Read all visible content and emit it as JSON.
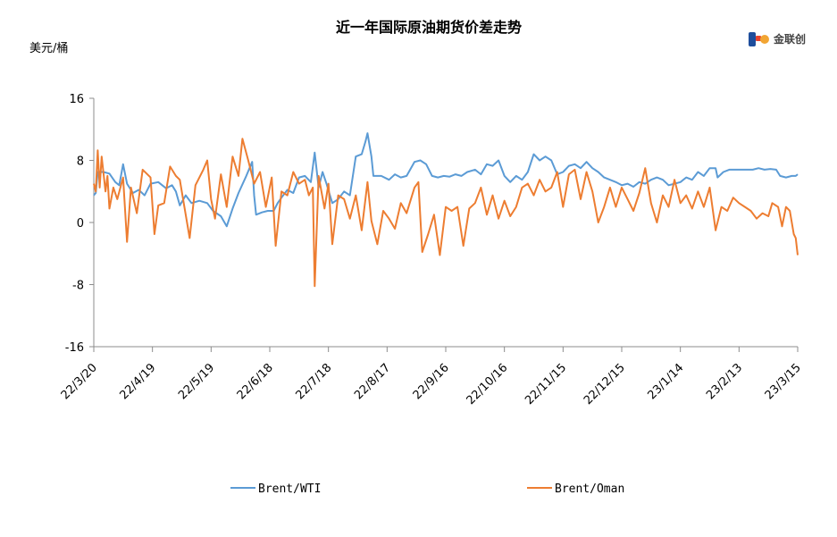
{
  "chart_data": {
    "type": "line",
    "title": "近一年国际原油期货价差走势",
    "ylabel": "美元/桶",
    "xlabel": "",
    "ylim": [
      -16,
      16
    ],
    "yticks": [
      16,
      8,
      0,
      -8,
      -16
    ],
    "xticks": [
      "22/3/20",
      "22/4/19",
      "22/5/19",
      "22/6/18",
      "22/7/18",
      "22/8/17",
      "22/9/16",
      "22/10/16",
      "22/11/15",
      "22/12/15",
      "23/1/14",
      "23/2/13",
      "23/3/15"
    ],
    "x_start": "2022-03-20",
    "x_end": "2023-03-15",
    "grid": false,
    "legend_position": "bottom",
    "series": [
      {
        "name": "Brent/WTI",
        "color": "#5b9bd5",
        "points": [
          [
            "2022-03-20",
            3.5
          ],
          [
            "2022-03-21",
            3.8
          ],
          [
            "2022-03-22",
            6.5
          ],
          [
            "2022-03-25",
            6.5
          ],
          [
            "2022-03-28",
            6.3
          ],
          [
            "2022-03-31",
            5.2
          ],
          [
            "2022-04-02",
            4.8
          ],
          [
            "2022-04-04",
            7.5
          ],
          [
            "2022-04-06",
            5.0
          ],
          [
            "2022-04-09",
            3.8
          ],
          [
            "2022-04-12",
            4.2
          ],
          [
            "2022-04-15",
            3.5
          ],
          [
            "2022-04-18",
            5.0
          ],
          [
            "2022-04-22",
            5.2
          ],
          [
            "2022-04-26",
            4.4
          ],
          [
            "2022-04-29",
            4.8
          ],
          [
            "2022-05-01",
            4.0
          ],
          [
            "2022-05-03",
            2.2
          ],
          [
            "2022-05-06",
            3.5
          ],
          [
            "2022-05-09",
            2.5
          ],
          [
            "2022-05-13",
            2.8
          ],
          [
            "2022-05-17",
            2.5
          ],
          [
            "2022-05-20",
            1.5
          ],
          [
            "2022-05-24",
            0.8
          ],
          [
            "2022-05-27",
            -0.5
          ],
          [
            "2022-05-30",
            1.8
          ],
          [
            "2022-06-02",
            3.8
          ],
          [
            "2022-06-06",
            6.0
          ],
          [
            "2022-06-09",
            7.8
          ],
          [
            "2022-06-10",
            3.5
          ],
          [
            "2022-06-11",
            1.0
          ],
          [
            "2022-06-14",
            1.3
          ],
          [
            "2022-06-17",
            1.5
          ],
          [
            "2022-06-20",
            1.5
          ],
          [
            "2022-06-22",
            2.5
          ],
          [
            "2022-06-24",
            3.2
          ],
          [
            "2022-06-27",
            4.2
          ],
          [
            "2022-06-30",
            3.8
          ],
          [
            "2022-07-03",
            5.8
          ],
          [
            "2022-07-06",
            6.0
          ],
          [
            "2022-07-09",
            5.2
          ],
          [
            "2022-07-11",
            9.0
          ],
          [
            "2022-07-13",
            4.5
          ],
          [
            "2022-07-15",
            6.5
          ],
          [
            "2022-07-17",
            5.0
          ],
          [
            "2022-07-20",
            2.5
          ],
          [
            "2022-07-23",
            3.0
          ],
          [
            "2022-07-26",
            4.0
          ],
          [
            "2022-07-29",
            3.5
          ],
          [
            "2022-08-01",
            8.5
          ],
          [
            "2022-08-04",
            8.8
          ],
          [
            "2022-08-06",
            10.5
          ],
          [
            "2022-08-07",
            11.5
          ],
          [
            "2022-08-09",
            8.5
          ],
          [
            "2022-08-10",
            6.0
          ],
          [
            "2022-08-14",
            6.0
          ],
          [
            "2022-08-18",
            5.5
          ],
          [
            "2022-08-21",
            6.2
          ],
          [
            "2022-08-24",
            5.8
          ],
          [
            "2022-08-27",
            6.0
          ],
          [
            "2022-08-31",
            7.8
          ],
          [
            "2022-09-03",
            8.0
          ],
          [
            "2022-09-06",
            7.5
          ],
          [
            "2022-09-09",
            6.0
          ],
          [
            "2022-09-12",
            5.8
          ],
          [
            "2022-09-15",
            6.0
          ],
          [
            "2022-09-18",
            5.9
          ],
          [
            "2022-09-21",
            6.2
          ],
          [
            "2022-09-24",
            6.0
          ],
          [
            "2022-09-27",
            6.5
          ],
          [
            "2022-10-01",
            6.8
          ],
          [
            "2022-10-04",
            6.2
          ],
          [
            "2022-10-07",
            7.5
          ],
          [
            "2022-10-10",
            7.3
          ],
          [
            "2022-10-13",
            8.0
          ],
          [
            "2022-10-16",
            6.0
          ],
          [
            "2022-10-19",
            5.2
          ],
          [
            "2022-10-22",
            6.0
          ],
          [
            "2022-10-25",
            5.5
          ],
          [
            "2022-10-28",
            6.5
          ],
          [
            "2022-10-31",
            8.8
          ],
          [
            "2022-11-03",
            8.0
          ],
          [
            "2022-11-06",
            8.5
          ],
          [
            "2022-11-09",
            8.0
          ],
          [
            "2022-11-12",
            6.2
          ],
          [
            "2022-11-15",
            6.5
          ],
          [
            "2022-11-18",
            7.3
          ],
          [
            "2022-11-21",
            7.5
          ],
          [
            "2022-11-24",
            7.0
          ],
          [
            "2022-11-27",
            7.8
          ],
          [
            "2022-11-30",
            7.0
          ],
          [
            "2022-12-03",
            6.5
          ],
          [
            "2022-12-06",
            5.8
          ],
          [
            "2022-12-09",
            5.5
          ],
          [
            "2022-12-12",
            5.2
          ],
          [
            "2022-12-15",
            4.8
          ],
          [
            "2022-12-18",
            5.0
          ],
          [
            "2022-12-21",
            4.6
          ],
          [
            "2022-12-24",
            5.2
          ],
          [
            "2022-12-27",
            5.0
          ],
          [
            "2022-12-30",
            5.5
          ],
          [
            "2023-01-02",
            5.8
          ],
          [
            "2023-01-05",
            5.5
          ],
          [
            "2023-01-08",
            4.8
          ],
          [
            "2023-01-11",
            5.0
          ],
          [
            "2023-01-14",
            5.2
          ],
          [
            "2023-01-17",
            5.8
          ],
          [
            "2023-01-20",
            5.5
          ],
          [
            "2023-01-23",
            6.5
          ],
          [
            "2023-01-26",
            6.0
          ],
          [
            "2023-01-29",
            7.0
          ],
          [
            "2023-02-01",
            7.0
          ],
          [
            "2023-02-02",
            5.8
          ],
          [
            "2023-02-05",
            6.5
          ],
          [
            "2023-02-08",
            6.8
          ],
          [
            "2023-02-11",
            6.8
          ],
          [
            "2023-02-14",
            6.8
          ],
          [
            "2023-02-17",
            6.8
          ],
          [
            "2023-02-20",
            6.8
          ],
          [
            "2023-02-23",
            7.0
          ],
          [
            "2023-02-26",
            6.8
          ],
          [
            "2023-03-01",
            6.9
          ],
          [
            "2023-03-04",
            6.8
          ],
          [
            "2023-03-06",
            6.0
          ],
          [
            "2023-03-09",
            5.8
          ],
          [
            "2023-03-12",
            6.0
          ],
          [
            "2023-03-14",
            6.0
          ],
          [
            "2023-03-15",
            6.2
          ]
        ]
      },
      {
        "name": "Brent/Oman",
        "color": "#ed7d31",
        "points": [
          [
            "2022-03-20",
            5.0
          ],
          [
            "2022-03-21",
            4.0
          ],
          [
            "2022-03-22",
            9.3
          ],
          [
            "2022-03-23",
            4.5
          ],
          [
            "2022-03-24",
            8.5
          ],
          [
            "2022-03-26",
            4.0
          ],
          [
            "2022-03-27",
            6.0
          ],
          [
            "2022-03-28",
            1.8
          ],
          [
            "2022-03-30",
            4.5
          ],
          [
            "2022-04-01",
            3.0
          ],
          [
            "2022-04-04",
            5.8
          ],
          [
            "2022-04-06",
            -2.5
          ],
          [
            "2022-04-08",
            4.5
          ],
          [
            "2022-04-11",
            1.2
          ],
          [
            "2022-04-14",
            6.8
          ],
          [
            "2022-04-18",
            5.8
          ],
          [
            "2022-04-20",
            -1.5
          ],
          [
            "2022-04-22",
            2.2
          ],
          [
            "2022-04-25",
            2.5
          ],
          [
            "2022-04-28",
            7.2
          ],
          [
            "2022-05-01",
            6.0
          ],
          [
            "2022-05-03",
            5.5
          ],
          [
            "2022-05-05",
            2.5
          ],
          [
            "2022-05-08",
            -2.0
          ],
          [
            "2022-05-11",
            4.8
          ],
          [
            "2022-05-15",
            6.8
          ],
          [
            "2022-05-17",
            8.0
          ],
          [
            "2022-05-19",
            3.0
          ],
          [
            "2022-05-21",
            0.5
          ],
          [
            "2022-05-24",
            6.2
          ],
          [
            "2022-05-27",
            2.0
          ],
          [
            "2022-05-30",
            8.5
          ],
          [
            "2022-06-02",
            6.0
          ],
          [
            "2022-06-04",
            10.8
          ],
          [
            "2022-06-07",
            8.0
          ],
          [
            "2022-06-10",
            5.0
          ],
          [
            "2022-06-13",
            6.5
          ],
          [
            "2022-06-16",
            2.0
          ],
          [
            "2022-06-19",
            5.8
          ],
          [
            "2022-06-21",
            -3.0
          ],
          [
            "2022-06-24",
            4.0
          ],
          [
            "2022-06-27",
            3.5
          ],
          [
            "2022-06-30",
            6.5
          ],
          [
            "2022-07-03",
            5.0
          ],
          [
            "2022-07-06",
            5.5
          ],
          [
            "2022-07-08",
            3.5
          ],
          [
            "2022-07-10",
            4.5
          ],
          [
            "2022-07-11",
            -8.2
          ],
          [
            "2022-07-13",
            6.0
          ],
          [
            "2022-07-16",
            1.8
          ],
          [
            "2022-07-18",
            5.0
          ],
          [
            "2022-07-20",
            -2.8
          ],
          [
            "2022-07-23",
            3.5
          ],
          [
            "2022-07-26",
            3.0
          ],
          [
            "2022-07-29",
            0.5
          ],
          [
            "2022-08-01",
            3.5
          ],
          [
            "2022-08-04",
            -1.0
          ],
          [
            "2022-08-07",
            5.2
          ],
          [
            "2022-08-09",
            0.2
          ],
          [
            "2022-08-12",
            -2.8
          ],
          [
            "2022-08-15",
            1.5
          ],
          [
            "2022-08-18",
            0.5
          ],
          [
            "2022-08-21",
            -0.8
          ],
          [
            "2022-08-24",
            2.5
          ],
          [
            "2022-08-27",
            1.2
          ],
          [
            "2022-08-31",
            4.5
          ],
          [
            "2022-09-02",
            5.2
          ],
          [
            "2022-09-04",
            -3.8
          ],
          [
            "2022-09-07",
            -1.5
          ],
          [
            "2022-09-10",
            1.0
          ],
          [
            "2022-09-13",
            -4.2
          ],
          [
            "2022-09-16",
            2.0
          ],
          [
            "2022-09-19",
            1.5
          ],
          [
            "2022-09-22",
            2.0
          ],
          [
            "2022-09-25",
            -3.0
          ],
          [
            "2022-09-28",
            1.8
          ],
          [
            "2022-10-01",
            2.5
          ],
          [
            "2022-10-04",
            4.5
          ],
          [
            "2022-10-07",
            1.0
          ],
          [
            "2022-10-10",
            3.5
          ],
          [
            "2022-10-13",
            0.5
          ],
          [
            "2022-10-16",
            2.8
          ],
          [
            "2022-10-19",
            0.8
          ],
          [
            "2022-10-22",
            2.0
          ],
          [
            "2022-10-25",
            4.5
          ],
          [
            "2022-10-28",
            5.0
          ],
          [
            "2022-10-31",
            3.5
          ],
          [
            "2022-11-03",
            5.5
          ],
          [
            "2022-11-06",
            4.0
          ],
          [
            "2022-11-09",
            4.5
          ],
          [
            "2022-11-12",
            6.5
          ],
          [
            "2022-11-15",
            2.0
          ],
          [
            "2022-11-18",
            6.2
          ],
          [
            "2022-11-21",
            6.8
          ],
          [
            "2022-11-24",
            3.0
          ],
          [
            "2022-11-27",
            6.5
          ],
          [
            "2022-11-30",
            4.0
          ],
          [
            "2022-12-03",
            0.0
          ],
          [
            "2022-12-06",
            2.0
          ],
          [
            "2022-12-09",
            4.5
          ],
          [
            "2022-12-12",
            2.0
          ],
          [
            "2022-12-15",
            4.5
          ],
          [
            "2022-12-18",
            3.0
          ],
          [
            "2022-12-21",
            1.5
          ],
          [
            "2022-12-24",
            3.8
          ],
          [
            "2022-12-27",
            7.0
          ],
          [
            "2022-12-30",
            2.5
          ],
          [
            "2023-01-02",
            0.0
          ],
          [
            "2023-01-05",
            3.5
          ],
          [
            "2023-01-08",
            2.0
          ],
          [
            "2023-01-11",
            5.5
          ],
          [
            "2023-01-14",
            2.5
          ],
          [
            "2023-01-17",
            3.5
          ],
          [
            "2023-01-20",
            1.8
          ],
          [
            "2023-01-23",
            4.0
          ],
          [
            "2023-01-26",
            2.0
          ],
          [
            "2023-01-29",
            4.5
          ],
          [
            "2023-02-01",
            -1.0
          ],
          [
            "2023-02-04",
            2.0
          ],
          [
            "2023-02-07",
            1.5
          ],
          [
            "2023-02-10",
            3.2
          ],
          [
            "2023-02-13",
            2.5
          ],
          [
            "2023-02-16",
            2.0
          ],
          [
            "2023-02-19",
            1.5
          ],
          [
            "2023-02-22",
            0.5
          ],
          [
            "2023-02-25",
            1.2
          ],
          [
            "2023-02-28",
            0.8
          ],
          [
            "2023-03-02",
            2.5
          ],
          [
            "2023-03-05",
            2.0
          ],
          [
            "2023-03-07",
            -0.5
          ],
          [
            "2023-03-09",
            2.0
          ],
          [
            "2023-03-11",
            1.5
          ],
          [
            "2023-03-13",
            -1.5
          ],
          [
            "2023-03-14",
            -2.0
          ],
          [
            "2023-03-15",
            -4.2
          ]
        ]
      }
    ]
  },
  "logo": {
    "text": "金联创",
    "primary_color": "#1f4e9c",
    "accent_color": "#e8442e"
  }
}
